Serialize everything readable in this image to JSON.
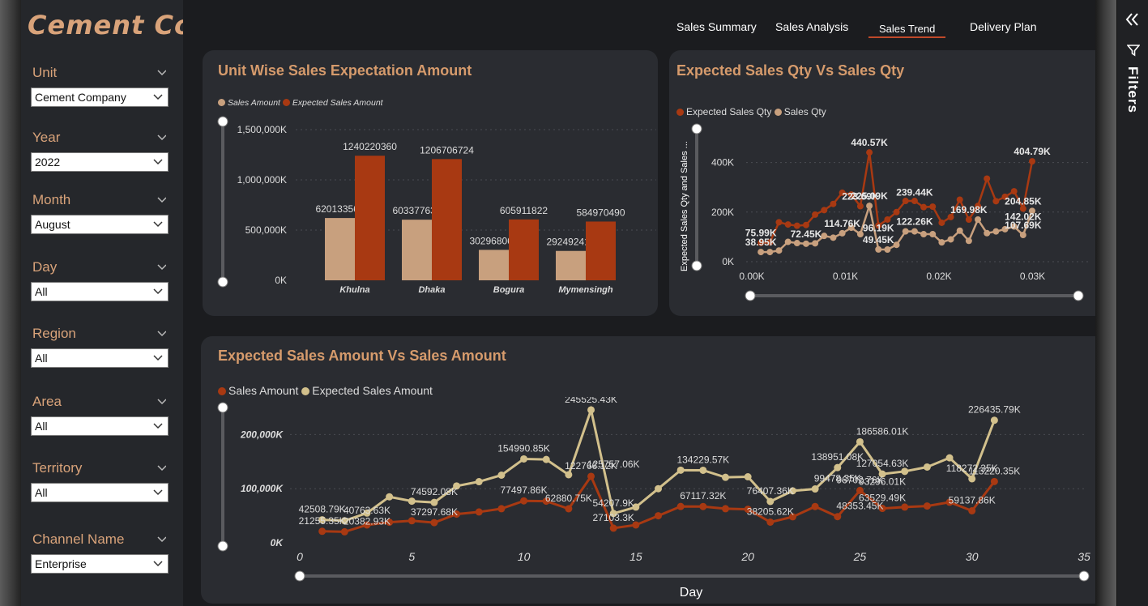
{
  "brand": "Cement  Co",
  "filters": [
    {
      "label": "Unit",
      "value": "Cement Company"
    },
    {
      "label": "Year",
      "value": "2022"
    },
    {
      "label": "Month",
      "value": "August"
    },
    {
      "label": "Day",
      "value": "All"
    },
    {
      "label": "Region",
      "value": "All"
    },
    {
      "label": "Area",
      "value": "All"
    },
    {
      "label": "Territory",
      "value": "All"
    },
    {
      "label": "Channel Name",
      "value": "Enterprise"
    }
  ],
  "nav": {
    "tabs": [
      "Sales Summary",
      "Sales Analysis",
      "Sales Trend",
      "Delivery Plan"
    ],
    "active": "Sales Trend"
  },
  "filters_pane": {
    "label": "Filters"
  },
  "colors": {
    "sales": "#c8a07e",
    "expected": "#a83912",
    "beige": "#d2c08c",
    "title": "#d69b6c"
  },
  "chart_data": [
    {
      "type": "bar",
      "title": "Unit Wise Sales Expectation Amount",
      "legend": [
        "Sales Amount",
        "Expected Sales Amount"
      ],
      "categories": [
        "Khulna",
        "Dhaka",
        "Bogura",
        "Mymensingh"
      ],
      "series": [
        {
          "name": "Sales Amount",
          "values": [
            620133565,
            603377632,
            302968061,
            292492415
          ],
          "labels": [
            "620133565",
            "603377632",
            "302968061",
            "292492415"
          ]
        },
        {
          "name": "Expected Sales Amount",
          "values": [
            1240220360,
            1206706724,
            605911822,
            584970490
          ],
          "labels": [
            "1240220360",
            "1206706724",
            "605911822",
            "584970490"
          ]
        }
      ],
      "yticks": [
        "0K",
        "500,000K",
        "1,000,000K",
        "1,500,000K"
      ],
      "ylim": [
        0,
        1500000000
      ],
      "grid": true,
      "legend_position": "top-left"
    },
    {
      "type": "line",
      "title": "Expected Sales Qty Vs Sales Qty",
      "legend": [
        "Expected Sales Qty",
        "Sales Qty"
      ],
      "ylabel": "Expected Sales Qty and Sales ...",
      "xticks": [
        "0.00K",
        "0.01K",
        "0.02K",
        "0.03K"
      ],
      "xlim": [
        0,
        31
      ],
      "yticks": [
        "0K",
        "200K",
        "400K"
      ],
      "ylim": [
        0,
        500000
      ],
      "x": [
        1,
        2,
        3,
        4,
        5,
        6,
        7,
        8,
        9,
        10,
        11,
        12,
        13,
        14,
        15,
        16,
        17,
        18,
        19,
        20,
        21,
        22,
        23,
        24,
        25,
        26,
        27,
        28,
        29,
        30,
        31
      ],
      "series": [
        {
          "name": "Expected Sales Qty",
          "values": [
            75990,
            77900,
            159000,
            150000,
            145000,
            148000,
            190000,
            208000,
            233000,
            278000,
            271000,
            223690,
            440570,
            146000,
            170000,
            200000,
            245000,
            245000,
            220000,
            222000,
            157000,
            180000,
            250000,
            169980,
            225000,
            335000,
            244000,
            262000,
            284000,
            214000,
            404790
          ]
        },
        {
          "name": "Sales Qty",
          "values": [
            38950,
            38950,
            45000,
            80000,
            75000,
            72450,
            74000,
            104000,
            97000,
            114760,
            137000,
            111000,
            225090,
            49450,
            49000,
            68000,
            122260,
            122260,
            111000,
            111000,
            78000,
            90000,
            125000,
            84000,
            169980,
            115000,
            122000,
            131000,
            142000,
            107690,
            204850
          ]
        }
      ],
      "annotations": [
        {
          "x": 1,
          "y": 75990,
          "text": "75.99K"
        },
        {
          "x": 1,
          "y": 38950,
          "text": "38.95K"
        },
        {
          "x": 6,
          "y": 72450,
          "text": "72.45K"
        },
        {
          "x": 10,
          "y": 114760,
          "text": "114.76K"
        },
        {
          "x": 13,
          "y": 440570,
          "text": "440.57K"
        },
        {
          "x": 12,
          "y": 223690,
          "text": "223.69K"
        },
        {
          "x": 13,
          "y": 225090,
          "text": "225.09K"
        },
        {
          "x": 14,
          "y": 49450,
          "text": "49.45K"
        },
        {
          "x": 14,
          "y": 96190,
          "text": "96.19K"
        },
        {
          "x": 18,
          "y": 239440,
          "text": "239.44K"
        },
        {
          "x": 18,
          "y": 122260,
          "text": "122.26K"
        },
        {
          "x": 24,
          "y": 169980,
          "text": "169.98K"
        },
        {
          "x": 31,
          "y": 404790,
          "text": "404.79K"
        },
        {
          "x": 30,
          "y": 204850,
          "text": "204.85K"
        },
        {
          "x": 30,
          "y": 142020,
          "text": "142.02K"
        },
        {
          "x": 30,
          "y": 107690,
          "text": "107.69K"
        }
      ],
      "grid": true,
      "legend_position": "top-left"
    },
    {
      "type": "line",
      "title": "Expected Sales Amount Vs Sales Amount",
      "legend": [
        "Sales Amount",
        "Expected Sales Amount"
      ],
      "xlabel": "Day",
      "xticks": [
        "0",
        "5",
        "10",
        "15",
        "20",
        "25",
        "30",
        "35"
      ],
      "xlim": [
        0,
        35
      ],
      "yticks": [
        "0K",
        "100,000K",
        "200,000K"
      ],
      "ylim": [
        0,
        250000000
      ],
      "x": [
        1,
        2,
        3,
        4,
        5,
        6,
        7,
        8,
        9,
        10,
        11,
        12,
        13,
        14,
        15,
        16,
        17,
        18,
        19,
        20,
        21,
        22,
        23,
        24,
        25,
        26,
        27,
        28,
        29,
        30,
        31
      ],
      "series": [
        {
          "name": "Sales Amount",
          "values": [
            21255350,
            20382930,
            33000000,
            38000000,
            40763630,
            37297680,
            53000000,
            57000000,
            63000000,
            77497860,
            77000000,
            62880750,
            122766120,
            27103300,
            33000000,
            50000000,
            67117320,
            67000000,
            63000000,
            62000000,
            38205620,
            48000000,
            67000000,
            48353450,
            96702760,
            63529490,
            66000000,
            68000000,
            75000000,
            59137860,
            113220350
          ]
        },
        {
          "name": "Expected Sales Amount",
          "values": [
            42508790,
            40763630,
            55000000,
            85000000,
            77000000,
            74592080,
            105000000,
            113000000,
            125000000,
            154990850,
            154000000,
            125757060,
            245525430,
            54207900,
            66000000,
            100000000,
            134229570,
            134000000,
            121000000,
            122000000,
            76407360,
            96000000,
            99478350,
            138951080,
            186586010,
            127054630,
            132000000,
            140000000,
            157000000,
            118272350,
            226435790
          ]
        }
      ],
      "annotations": [
        {
          "x": 1,
          "y": 42508790,
          "text": "42508.79K"
        },
        {
          "x": 1,
          "y": 21255350,
          "text": "21255.35K"
        },
        {
          "x": 3,
          "y": 40763630,
          "text": "40763.63K"
        },
        {
          "x": 3,
          "y": 20382930,
          "text": "20382.93K"
        },
        {
          "x": 6,
          "y": 74592080,
          "text": "74592.08K"
        },
        {
          "x": 6,
          "y": 37297680,
          "text": "37297.68K"
        },
        {
          "x": 10,
          "y": 154990850,
          "text": "154990.85K"
        },
        {
          "x": 10,
          "y": 77497860,
          "text": "77497.86K"
        },
        {
          "x": 12,
          "y": 62880750,
          "text": "62880.75K"
        },
        {
          "x": 13,
          "y": 245525430,
          "text": "245525.43K"
        },
        {
          "x": 13,
          "y": 122766120,
          "text": "122766.12K"
        },
        {
          "x": 14,
          "y": 125757060,
          "text": "125757.06K"
        },
        {
          "x": 14,
          "y": 54207900,
          "text": "54207.9K"
        },
        {
          "x": 14,
          "y": 27103300,
          "text": "27103.3K"
        },
        {
          "x": 18,
          "y": 134229570,
          "text": "134229.57K"
        },
        {
          "x": 18,
          "y": 67117320,
          "text": "67117.32K"
        },
        {
          "x": 21,
          "y": 76407360,
          "text": "76407.36K"
        },
        {
          "x": 21,
          "y": 38205620,
          "text": "38205.62K"
        },
        {
          "x": 24,
          "y": 138951080,
          "text": "138951.08K"
        },
        {
          "x": 24,
          "y": 99478350,
          "text": "99478.35K"
        },
        {
          "x": 25,
          "y": 96702760,
          "text": "96702.76K"
        },
        {
          "x": 25,
          "y": 48353450,
          "text": "48353.45K"
        },
        {
          "x": 26,
          "y": 186586010,
          "text": "186586.01K"
        },
        {
          "x": 26,
          "y": 127054630,
          "text": "127054.63K"
        },
        {
          "x": 26,
          "y": 93296010,
          "text": "93296.01K"
        },
        {
          "x": 26,
          "y": 63529490,
          "text": "63529.49K"
        },
        {
          "x": 31,
          "y": 226435790,
          "text": "226435.79K"
        },
        {
          "x": 31,
          "y": 113220350,
          "text": "113220.35K"
        },
        {
          "x": 30,
          "y": 118272350,
          "text": "118272.35K"
        },
        {
          "x": 30,
          "y": 59137860,
          "text": "59137.86K"
        }
      ],
      "grid": true,
      "legend_position": "top-left"
    }
  ]
}
